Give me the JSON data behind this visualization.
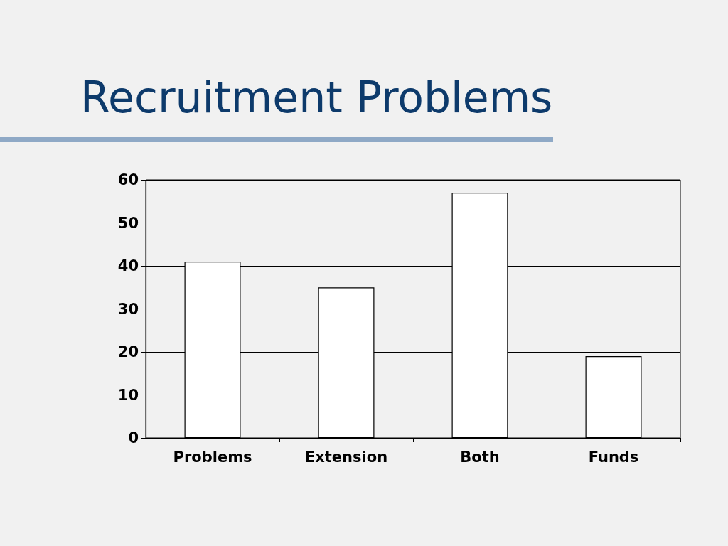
{
  "chart_data": {
    "type": "bar",
    "title": "Recruitment Problems",
    "categories": [
      "Problems",
      "Extension",
      "Both",
      "Funds"
    ],
    "values": [
      41,
      35,
      57,
      19
    ],
    "color": "#ffffff",
    "ylim": [
      0,
      60
    ],
    "yticks": [
      0,
      10,
      20,
      30,
      40,
      50,
      60
    ],
    "grid": "y"
  }
}
